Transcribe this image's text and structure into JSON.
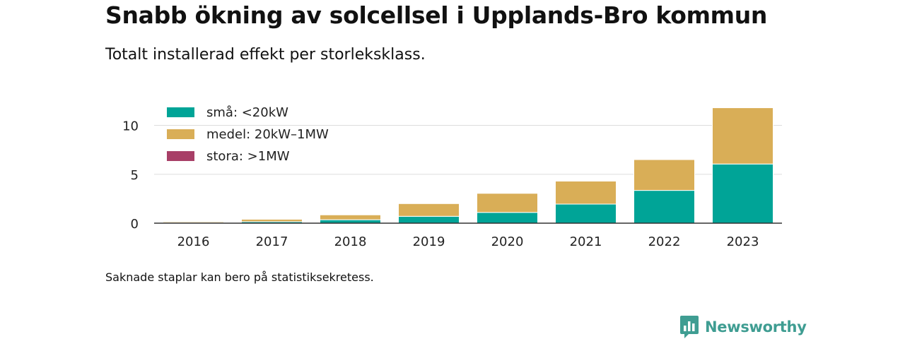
{
  "title": "Snabb ökning av solcellsel i Upplands-Bro kommun",
  "subtitle": "Totalt installerad effekt per storleksklass.",
  "note": "Saknade staplar kan bero på statistiksekretess.",
  "brand": {
    "name": "Newsworthy",
    "icon": "newsworthy-logo-icon",
    "color": "#3f9d92"
  },
  "chart_data": {
    "type": "bar",
    "stacked": true,
    "categories": [
      "2016",
      "2017",
      "2018",
      "2019",
      "2020",
      "2021",
      "2022",
      "2023"
    ],
    "series": [
      {
        "name": "små: <20kW",
        "color": "#00a497",
        "values": [
          0.05,
          0.15,
          0.35,
          0.7,
          1.1,
          1.95,
          3.35,
          6.05
        ]
      },
      {
        "name": "medel: 20kW–1MW",
        "color": "#d9ae57",
        "values": [
          0.1,
          0.25,
          0.5,
          1.3,
          1.95,
          2.35,
          3.15,
          5.75
        ]
      },
      {
        "name": "stora: >1MW",
        "color": "#a83f67",
        "values": [
          0,
          0,
          0,
          0,
          0,
          0,
          0,
          0
        ]
      }
    ],
    "yticks": [
      0,
      5,
      10
    ],
    "ylim": [
      0,
      12.2
    ],
    "grid": true,
    "legend_position": "top-left"
  }
}
